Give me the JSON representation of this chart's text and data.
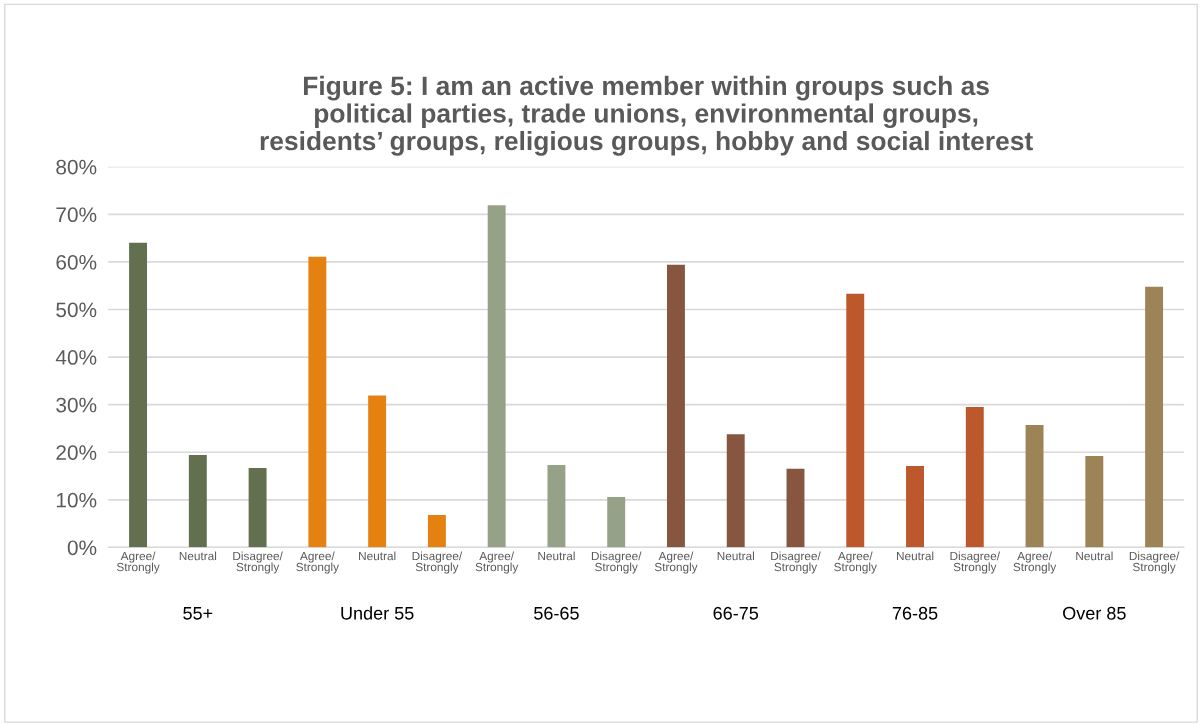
{
  "chart_data": {
    "type": "bar",
    "title": "Figure 5: I am an active member within groups such as\npolitical parties, trade unions, environmental groups,\nresidents’ groups, religious groups, hobby and social interest",
    "categories": [
      "Agree/\nStrongly",
      "Neutral",
      "Disagree/\nStrongly",
      "Agree/\nStrongly",
      "Neutral",
      "Disagree/\nStrongly",
      "Agree/\nStrongly",
      "Neutral",
      "Disagree/\nStrongly",
      "Agree/\nStrongly",
      "Neutral",
      "Disagree/\nStrongly",
      "Agree/\nStrongly",
      "Neutral",
      "Disagree/\nStrongly",
      "Agree/\nStrongly",
      "Neutral",
      "Disagree/\nStrongly"
    ],
    "values": [
      64,
      19.4,
      16.7,
      61.1,
      31.9,
      6.8,
      71.9,
      17.3,
      10.6,
      59.4,
      23.8,
      16.5,
      53.3,
      17.1,
      29.5,
      25.7,
      19.2,
      54.8
    ],
    "colors": [
      "#637050",
      "#637050",
      "#637050",
      "#e58111",
      "#e58111",
      "#e58111",
      "#96a287",
      "#96a287",
      "#96a287",
      "#875640",
      "#875640",
      "#875640",
      "#bd582c",
      "#bd582c",
      "#bd582c",
      "#9c8457",
      "#9c8457",
      "#9c8457"
    ],
    "annotations": [
      "55+",
      "Under 55",
      "56-65",
      "66-75",
      "76-85",
      "Over 85"
    ],
    "ylim": [
      0,
      80
    ],
    "yticks": [
      {
        "value": 0,
        "label": "0%"
      },
      {
        "value": 10,
        "label": "10%"
      },
      {
        "value": 20,
        "label": "20%"
      },
      {
        "value": 30,
        "label": "30%"
      },
      {
        "value": 40,
        "label": "40%"
      },
      {
        "value": 50,
        "label": "50%"
      },
      {
        "value": 60,
        "label": "60%"
      },
      {
        "value": 70,
        "label": "70%"
      },
      {
        "value": 80,
        "label": "80%"
      }
    ],
    "grid": "y",
    "legend": false
  }
}
